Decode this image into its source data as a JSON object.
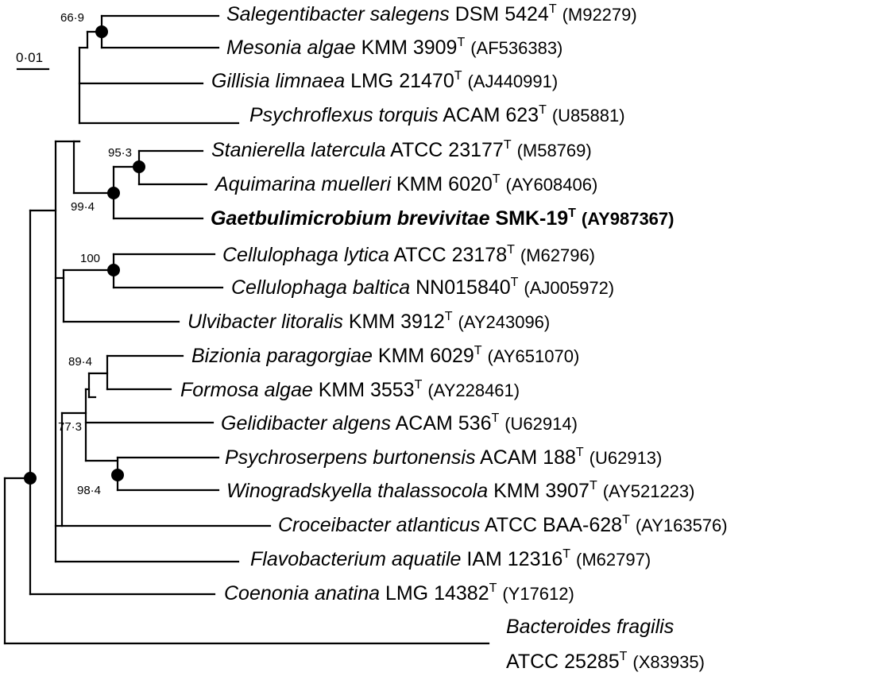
{
  "scale_bar": {
    "label": "0·01"
  },
  "taxa": [
    {
      "genus": "Salegentibacter salegens",
      "strain": "DSM 5424",
      "type_mark": "T",
      "accession": "(M92279)",
      "bold": false
    },
    {
      "genus": "Mesonia algae",
      "strain": "KMM 3909",
      "type_mark": "T",
      "accession": "(AF536383)",
      "bold": false
    },
    {
      "genus": "Gillisia limnaea",
      "strain": "LMG 21470",
      "type_mark": "T",
      "accession": "(AJ440991)",
      "bold": false
    },
    {
      "genus": "Psychroflexus torquis",
      "strain": "ACAM 623",
      "type_mark": "T",
      "accession": "(U85881)",
      "bold": false
    },
    {
      "genus": "Stanierella latercula",
      "strain": "ATCC 23177",
      "type_mark": "T",
      "accession": "(M58769)",
      "bold": false
    },
    {
      "genus": "Aquimarina muelleri",
      "strain": "KMM 6020",
      "type_mark": "T",
      "accession": "(AY608406)",
      "bold": false
    },
    {
      "genus": "Gaetbulimicrobium brevivitae",
      "strain": "SMK-19",
      "type_mark": "T",
      "accession": "(AY987367)",
      "bold": true
    },
    {
      "genus": "Cellulophaga lytica",
      "strain": "ATCC 23178",
      "type_mark": "T",
      "accession": "(M62796)",
      "bold": false
    },
    {
      "genus": "Cellulophaga baltica",
      "strain": "NN015840",
      "type_mark": "T",
      "accession": "(AJ005972)",
      "bold": false
    },
    {
      "genus": "Ulvibacter litoralis",
      "strain": "KMM 3912",
      "type_mark": "T",
      "accession": "(AY243096)",
      "bold": false
    },
    {
      "genus": "Bizionia paragorgiae",
      "strain": "KMM 6029",
      "type_mark": "T",
      "accession": "(AY651070)",
      "bold": false
    },
    {
      "genus": "Formosa algae",
      "strain": "KMM 3553",
      "type_mark": "T",
      "accession": "(AY228461)",
      "bold": false
    },
    {
      "genus": "Gelidibacter algens",
      "strain": "ACAM 536",
      "type_mark": "T",
      "accession": "(U62914)",
      "bold": false
    },
    {
      "genus": "Psychroserpens burtonensis",
      "strain": "ACAM 188",
      "type_mark": "T",
      "accession": "(U62913)",
      "bold": false
    },
    {
      "genus": "Winogradskyella thalassocola",
      "strain": "KMM 3907",
      "type_mark": "T",
      "accession": "(AY521223)",
      "bold": false
    },
    {
      "genus": "Croceibacter atlanticus",
      "strain": "ATCC BAA-628",
      "type_mark": "T",
      "accession": "(AY163576)",
      "bold": false
    },
    {
      "genus": "Flavobacterium aquatile",
      "strain": "IAM 12316",
      "type_mark": "T",
      "accession": "(M62797)",
      "bold": false
    },
    {
      "genus": "Coenonia anatina",
      "strain": "LMG 14382",
      "type_mark": "T",
      "accession": "(Y17612)",
      "bold": false
    },
    {
      "genus": "Bacteroides fragilis",
      "strain": "ATCC 25285",
      "type_mark": "T",
      "accession": "(X83935)",
      "bold": false
    }
  ],
  "bootstrap": [
    {
      "value": "66·9"
    },
    {
      "value": "95·3"
    },
    {
      "value": "99·4"
    },
    {
      "value": "100"
    },
    {
      "value": "89·4"
    },
    {
      "value": "77·3"
    },
    {
      "value": "98·4"
    }
  ],
  "colors": {
    "ink": "#000000",
    "background": "#ffffff"
  }
}
